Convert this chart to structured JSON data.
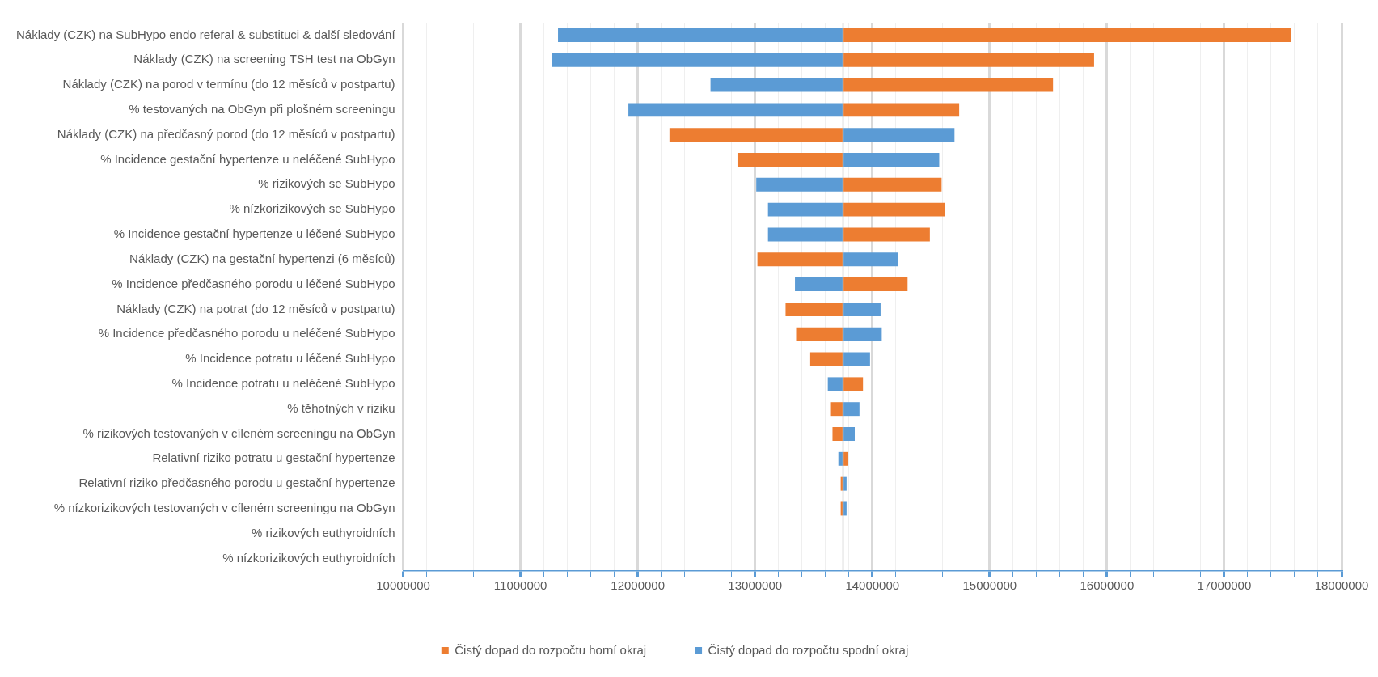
{
  "chart_data": {
    "type": "bar",
    "orientation": "horizontal",
    "categories": [
      "Náklady (CZK) na SubHypo endo referal & substituci & další sledování",
      "Náklady (CZK) na screening TSH test na ObGyn",
      "Náklady (CZK) na porod v termínu (do 12 měsíců v postpartu)",
      "% testovaných na ObGyn při plošném screeningu",
      "Náklady (CZK) na předčasný porod (do 12 měsíců v postpartu)",
      "% Incidence gestační hypertenze u neléčené SubHypo",
      "% rizikových se SubHypo",
      "% nízkorizikových se SubHypo",
      "% Incidence gestační hypertenze u léčené SubHypo",
      "Náklady (CZK) na gestační hypertenzi (6 měsíců)",
      "% Incidence předčasného porodu u léčené SubHypo",
      "Náklady (CZK) na potrat (do 12 měsíců v postpartu)",
      "% Incidence předčasného porodu u neléčené SubHypo",
      "% Incidence potratu u léčené SubHypo",
      "% Incidence potratu u neléčené SubHypo",
      "% těhotných v riziku",
      "% rizikových testovaných v cíleném screeningu na ObGyn",
      "Relativní riziko potratu u gestační hypertenze",
      "Relativní riziko předčasného porodu u gestační hypertenze",
      "% nízkorizikových testovaných v cíleném screeningu na ObGyn",
      "% rizikových euthyroidních",
      "% nízkorizikových euthyroidních"
    ],
    "series": [
      {
        "name": "Čistý dopad do rozpočtu horní okraj",
        "color": "#ed7d31",
        "base": [
          13750000,
          13750000,
          13750000,
          13750000,
          13750000,
          13750000,
          13750000,
          13750000,
          13750000,
          13750000,
          13750000,
          13750000,
          13750000,
          13750000,
          13750000,
          13750000,
          13750000,
          13750000,
          13750000,
          13750000,
          null,
          null
        ],
        "values": [
          3820000,
          2140000,
          1790000,
          990000,
          -1480000,
          -900000,
          840000,
          870000,
          740000,
          -730000,
          550000,
          -490000,
          -400000,
          -280000,
          170000,
          -110000,
          -90000,
          40000,
          -20000,
          -20000,
          null,
          null
        ]
      },
      {
        "name": "Čistý dopad do rozpočtu spodní okraj",
        "color": "#5b9bd5",
        "base": [
          13750000,
          13750000,
          13750000,
          13750000,
          13750000,
          13750000,
          13750000,
          13750000,
          13750000,
          13750000,
          13750000,
          13750000,
          13750000,
          13750000,
          13750000,
          13750000,
          13750000,
          13750000,
          13750000,
          13750000,
          null,
          null
        ],
        "values": [
          -2430000,
          -2480000,
          -1130000,
          -1830000,
          950000,
          820000,
          -740000,
          -640000,
          -640000,
          470000,
          -410000,
          320000,
          330000,
          230000,
          -130000,
          140000,
          100000,
          -40000,
          30000,
          30000,
          null,
          null
        ]
      }
    ],
    "ref_lines": [
      {
        "axis": "x",
        "value": 13750000,
        "color": "#bfbfbf"
      }
    ],
    "xlim": [
      10000000,
      18000000
    ],
    "xticks": [
      10000000,
      {
        "value": 10200000,
        "label": null
      },
      {
        "value": 10400000,
        "label": null
      },
      {
        "value": 10600000,
        "label": null
      },
      {
        "value": 10800000,
        "label": null
      },
      11000000,
      {
        "value": 11200000,
        "label": null
      },
      {
        "value": 11400000,
        "label": null
      },
      {
        "value": 11600000,
        "label": null
      },
      {
        "value": 11800000,
        "label": null
      },
      12000000,
      {
        "value": 12200000,
        "label": null
      },
      {
        "value": 12400000,
        "label": null
      },
      {
        "value": 12600000,
        "label": null
      },
      {
        "value": 12800000,
        "label": null
      },
      13000000,
      {
        "value": 13200000,
        "label": null
      },
      {
        "value": 13400000,
        "label": null
      },
      {
        "value": 13600000,
        "label": null
      },
      {
        "value": 13800000,
        "label": null
      },
      14000000,
      {
        "value": 14200000,
        "label": null
      },
      {
        "value": 14400000,
        "label": null
      },
      {
        "value": 14600000,
        "label": null
      },
      {
        "value": 14800000,
        "label": null
      },
      15000000,
      {
        "value": 15200000,
        "label": null
      },
      {
        "value": 15400000,
        "label": null
      },
      {
        "value": 15600000,
        "label": null
      },
      {
        "value": 15800000,
        "label": null
      },
      16000000,
      {
        "value": 16200000,
        "label": null
      },
      {
        "value": 16400000,
        "label": null
      },
      {
        "value": 16600000,
        "label": null
      },
      {
        "value": 16800000,
        "label": null
      },
      17000000,
      {
        "value": 17200000,
        "label": null
      },
      {
        "value": 17400000,
        "label": null
      },
      {
        "value": 17600000,
        "label": null
      },
      {
        "value": 17800000,
        "label": null
      },
      18000000
    ],
    "grid": "x",
    "legend": "bottom"
  }
}
